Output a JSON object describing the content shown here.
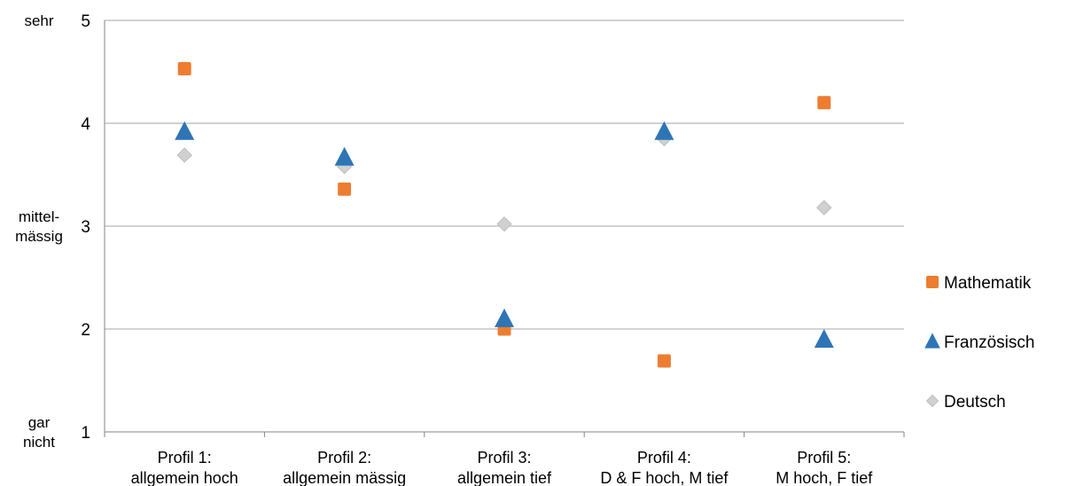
{
  "chart_data": {
    "type": "scatter",
    "title": "",
    "xlabel": "",
    "ylabel": "",
    "ylim": [
      1,
      5
    ],
    "yticks": [
      1,
      2,
      3,
      4,
      5
    ],
    "grid": "horizontal",
    "legend_position": "right",
    "y_verbal_labels": [
      {
        "value": 5,
        "lines": [
          "sehr"
        ]
      },
      {
        "value": 3,
        "lines": [
          "mittel-",
          "mässig"
        ]
      },
      {
        "value": 1,
        "lines": [
          "gar",
          "nicht"
        ]
      }
    ],
    "categories": [
      {
        "line1": "Profil 1:",
        "line2": "allgemein hoch"
      },
      {
        "line1": "Profil 2:",
        "line2": "allgemein mässig"
      },
      {
        "line1": "Profil 3:",
        "line2": "allgemein tief"
      },
      {
        "line1": "Profil 4:",
        "line2": "D & F hoch, M tief"
      },
      {
        "line1": "Profil 5:",
        "line2": "M hoch, F tief"
      }
    ],
    "series": [
      {
        "name": "Mathematik",
        "marker": "square",
        "color": "#ED7D31",
        "values": [
          4.53,
          3.36,
          2.0,
          1.69,
          4.2
        ]
      },
      {
        "name": "Französisch",
        "marker": "triangle",
        "color": "#2E75B6",
        "values": [
          3.92,
          3.67,
          2.1,
          3.92,
          1.9
        ]
      },
      {
        "name": "Deutsch",
        "marker": "diamond",
        "color": "#D0D0D0",
        "values": [
          3.69,
          3.58,
          3.02,
          3.85,
          3.18
        ]
      }
    ]
  }
}
